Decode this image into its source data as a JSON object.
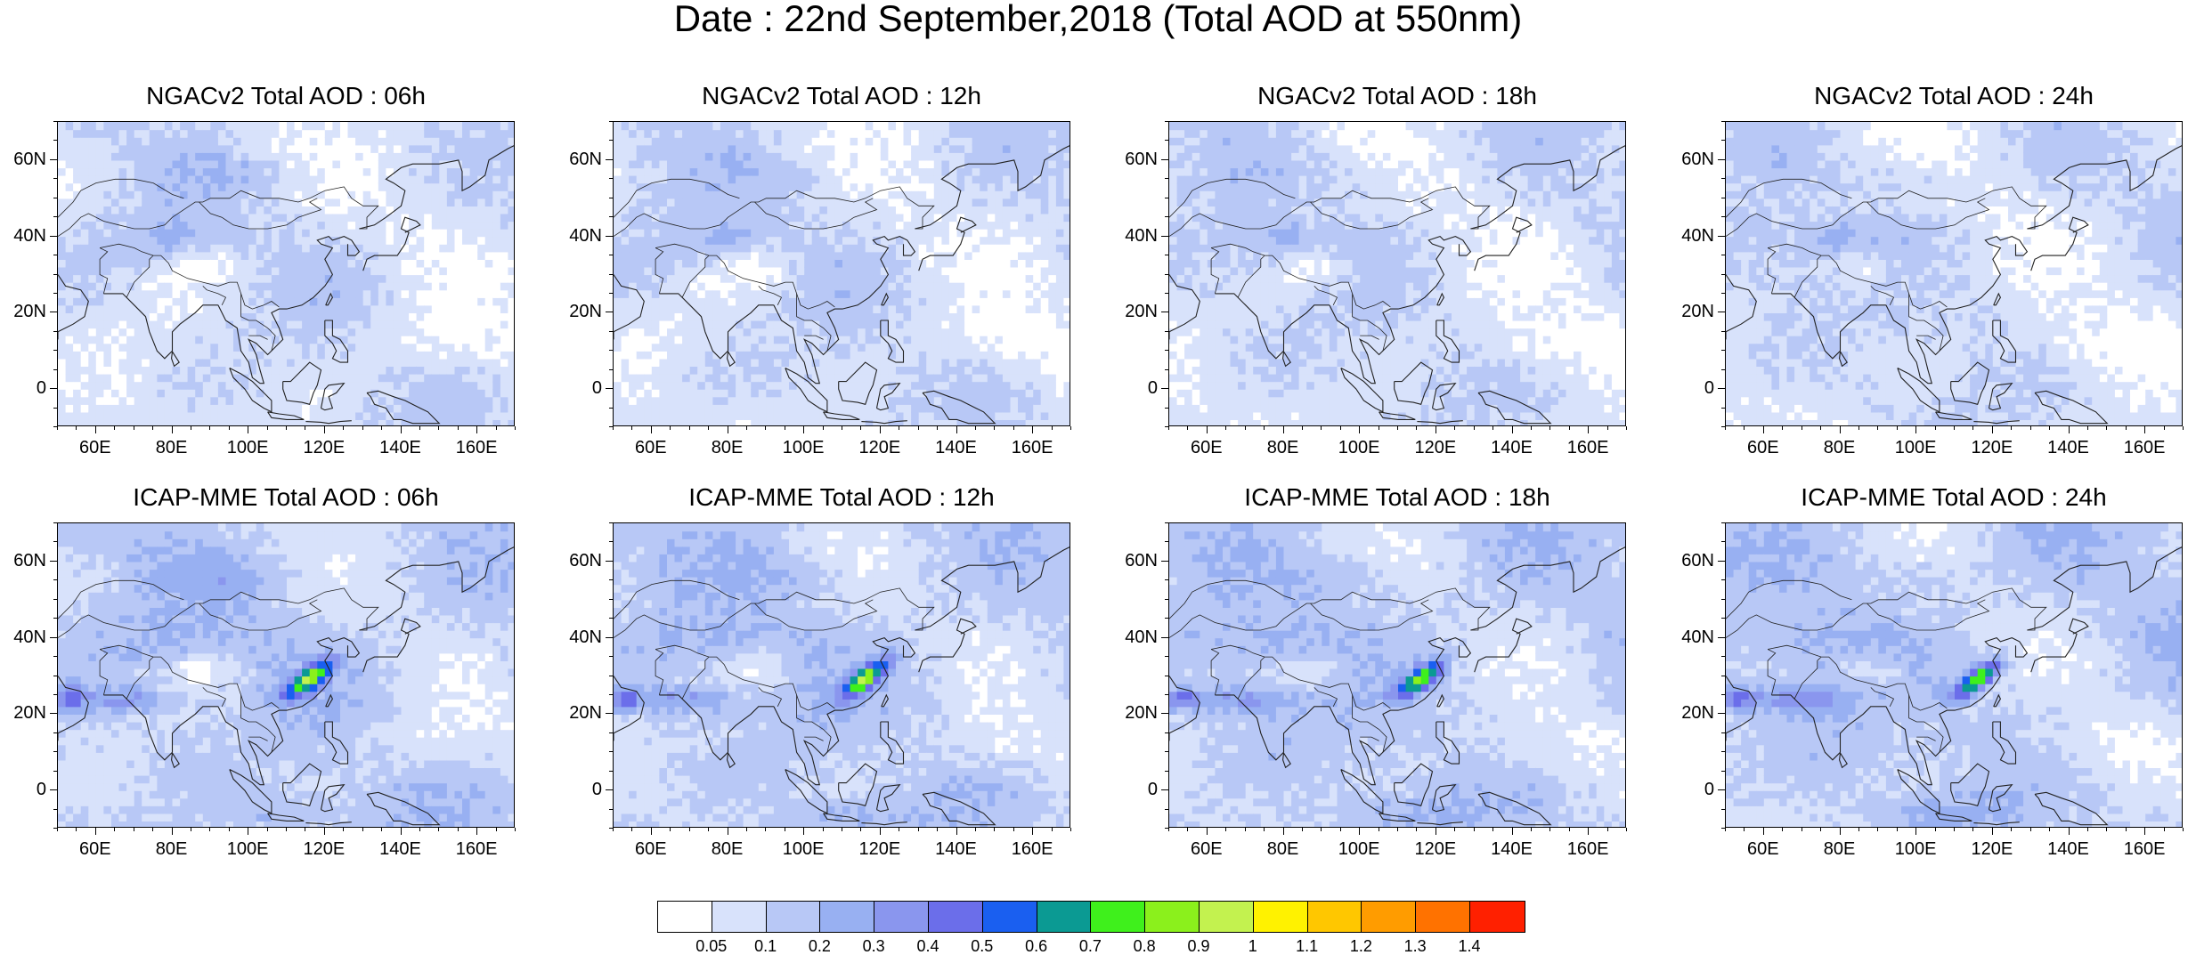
{
  "title": "Date : 22nd September,2018 (Total AOD at 550nm)",
  "panels": [
    {
      "title": "NGACv2 Total AOD : 06h",
      "model": "NGACv2",
      "hour": "06h"
    },
    {
      "title": "NGACv2 Total AOD : 12h",
      "model": "NGACv2",
      "hour": "12h"
    },
    {
      "title": "NGACv2 Total AOD : 18h",
      "model": "NGACv2",
      "hour": "18h"
    },
    {
      "title": "NGACv2 Total AOD : 24h",
      "model": "NGACv2",
      "hour": "24h"
    },
    {
      "title": "ICAP-MME Total AOD : 06h",
      "model": "ICAP-MME",
      "hour": "06h"
    },
    {
      "title": "ICAP-MME Total AOD : 12h",
      "model": "ICAP-MME",
      "hour": "12h"
    },
    {
      "title": "ICAP-MME Total AOD : 18h",
      "model": "ICAP-MME",
      "hour": "18h"
    },
    {
      "title": "ICAP-MME Total AOD : 24h",
      "model": "ICAP-MME",
      "hour": "24h"
    }
  ],
  "lon_ticks": [
    "60E",
    "80E",
    "100E",
    "120E",
    "140E",
    "160E"
  ],
  "lat_ticks": [
    "60N",
    "40N",
    "20N",
    "0"
  ],
  "map_extent": {
    "lon_min": 50,
    "lon_max": 170,
    "lat_min": -10,
    "lat_max": 70
  },
  "colorbar": {
    "labels": [
      "0.05",
      "0.1",
      "0.2",
      "0.3",
      "0.4",
      "0.5",
      "0.6",
      "0.7",
      "0.8",
      "0.9",
      "1",
      "1.1",
      "1.2",
      "1.3",
      "1.4"
    ],
    "colors": [
      "#ffffff",
      "#d8e2fb",
      "#b8c8f6",
      "#98b0f2",
      "#8a96ee",
      "#6b6eea",
      "#1a5ff0",
      "#0b9a93",
      "#3ff01c",
      "#8bf01c",
      "#c3f24f",
      "#fff200",
      "#ffc700",
      "#ff9c00",
      "#ff7200",
      "#ff2000"
    ]
  }
}
